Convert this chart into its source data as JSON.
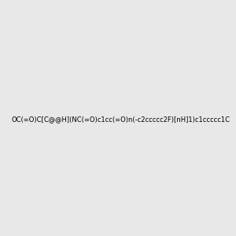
{
  "smiles": "OC(=O)C[C@@H](NC(=O)c1cc(=O)n(-c2ccccc2F)[nH]1)c1ccccc1C",
  "image_size": 300,
  "background_color": "#e8e8e8",
  "title": ""
}
